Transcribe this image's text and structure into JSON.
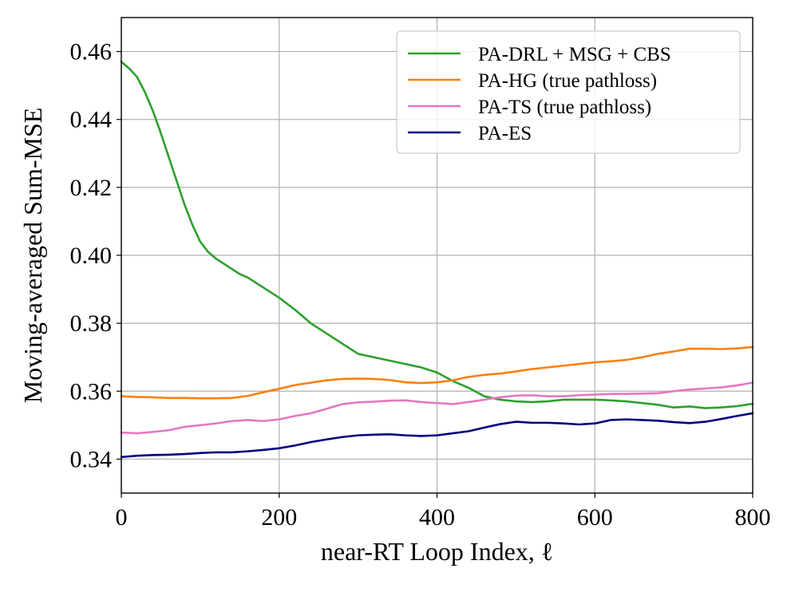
{
  "chart_data": {
    "type": "line",
    "title": "",
    "xlabel": "near-RT Loop Index, ℓ",
    "ylabel": "Moving-averaged Sum-MSE",
    "xlim": [
      0,
      800
    ],
    "ylim": [
      0.33,
      0.47
    ],
    "xticks": [
      0,
      200,
      400,
      600,
      800
    ],
    "yticks": [
      0.34,
      0.36,
      0.38,
      0.4,
      0.42,
      0.44,
      0.46
    ],
    "xtick_labels": [
      "0",
      "200",
      "400",
      "600",
      "800"
    ],
    "ytick_labels": [
      "0.34",
      "0.36",
      "0.38",
      "0.40",
      "0.42",
      "0.44",
      "0.46"
    ],
    "grid": true,
    "legend_position": "top-right",
    "series": [
      {
        "name": "PA-DRL + MSG + CBS",
        "color": "#2ca02c",
        "x": [
          0,
          10,
          20,
          30,
          40,
          50,
          60,
          70,
          80,
          90,
          100,
          110,
          120,
          130,
          140,
          150,
          160,
          170,
          180,
          190,
          200,
          220,
          240,
          260,
          280,
          300,
          320,
          340,
          360,
          380,
          400,
          420,
          440,
          460,
          480,
          500,
          520,
          540,
          560,
          580,
          600,
          620,
          640,
          660,
          680,
          700,
          720,
          740,
          760,
          780,
          800
        ],
        "y": [
          0.457,
          0.455,
          0.4525,
          0.448,
          0.4425,
          0.436,
          0.429,
          0.422,
          0.415,
          0.409,
          0.404,
          0.401,
          0.399,
          0.3975,
          0.396,
          0.3945,
          0.3935,
          0.392,
          0.3905,
          0.389,
          0.3875,
          0.384,
          0.38,
          0.377,
          0.374,
          0.371,
          0.37,
          0.369,
          0.368,
          0.367,
          0.3655,
          0.363,
          0.361,
          0.3585,
          0.3575,
          0.357,
          0.3568,
          0.357,
          0.3575,
          0.3575,
          0.3575,
          0.3573,
          0.357,
          0.3565,
          0.356,
          0.3552,
          0.3555,
          0.355,
          0.3552,
          0.3556,
          0.3563
        ]
      },
      {
        "name": "PA-HG (true pathloss)",
        "color": "#ff7f0e",
        "x": [
          0,
          20,
          40,
          60,
          80,
          100,
          120,
          140,
          160,
          180,
          200,
          220,
          240,
          260,
          280,
          300,
          320,
          340,
          360,
          380,
          400,
          420,
          440,
          460,
          480,
          500,
          520,
          540,
          560,
          580,
          600,
          620,
          640,
          660,
          680,
          700,
          720,
          740,
          760,
          780,
          800
        ],
        "y": [
          0.3585,
          0.3583,
          0.3582,
          0.358,
          0.358,
          0.3579,
          0.3579,
          0.358,
          0.3586,
          0.3597,
          0.3607,
          0.3618,
          0.3625,
          0.3632,
          0.3636,
          0.3637,
          0.3636,
          0.3633,
          0.3626,
          0.3624,
          0.3626,
          0.3632,
          0.3642,
          0.3648,
          0.3652,
          0.3658,
          0.3665,
          0.367,
          0.3675,
          0.368,
          0.3685,
          0.3688,
          0.3692,
          0.37,
          0.371,
          0.3717,
          0.3725,
          0.3725,
          0.3724,
          0.3726,
          0.373
        ]
      },
      {
        "name": "PA-TS (true pathloss)",
        "color": "#e377c2",
        "x": [
          0,
          20,
          40,
          60,
          80,
          100,
          120,
          140,
          160,
          180,
          200,
          220,
          240,
          260,
          280,
          300,
          320,
          340,
          360,
          380,
          400,
          420,
          440,
          460,
          480,
          500,
          520,
          540,
          560,
          580,
          600,
          620,
          640,
          660,
          680,
          700,
          720,
          740,
          760,
          780,
          800
        ],
        "y": [
          0.3478,
          0.3476,
          0.348,
          0.3485,
          0.3495,
          0.35,
          0.3505,
          0.3512,
          0.3515,
          0.3512,
          0.3517,
          0.3527,
          0.3535,
          0.3548,
          0.3562,
          0.3567,
          0.3569,
          0.3572,
          0.3573,
          0.3568,
          0.3565,
          0.3562,
          0.3568,
          0.3575,
          0.3582,
          0.3587,
          0.3588,
          0.3585,
          0.3585,
          0.3588,
          0.359,
          0.3592,
          0.3592,
          0.3593,
          0.3594,
          0.36,
          0.3605,
          0.3608,
          0.3611,
          0.3617,
          0.3625
        ]
      },
      {
        "name": "PA-ES",
        "color": "#000080",
        "x": [
          0,
          20,
          40,
          60,
          80,
          100,
          120,
          140,
          160,
          180,
          200,
          220,
          240,
          260,
          280,
          300,
          320,
          340,
          360,
          380,
          400,
          420,
          440,
          460,
          480,
          500,
          520,
          540,
          560,
          580,
          600,
          620,
          640,
          660,
          680,
          700,
          720,
          740,
          760,
          780,
          800
        ],
        "y": [
          0.3406,
          0.341,
          0.3412,
          0.3413,
          0.3415,
          0.3418,
          0.342,
          0.342,
          0.3423,
          0.3427,
          0.3432,
          0.344,
          0.345,
          0.3458,
          0.3465,
          0.347,
          0.3472,
          0.3473,
          0.347,
          0.3468,
          0.347,
          0.3476,
          0.3482,
          0.3493,
          0.3503,
          0.351,
          0.3507,
          0.3507,
          0.3505,
          0.3502,
          0.3505,
          0.3515,
          0.3517,
          0.3515,
          0.3513,
          0.3509,
          0.3506,
          0.351,
          0.3518,
          0.3527,
          0.3535
        ]
      }
    ]
  }
}
